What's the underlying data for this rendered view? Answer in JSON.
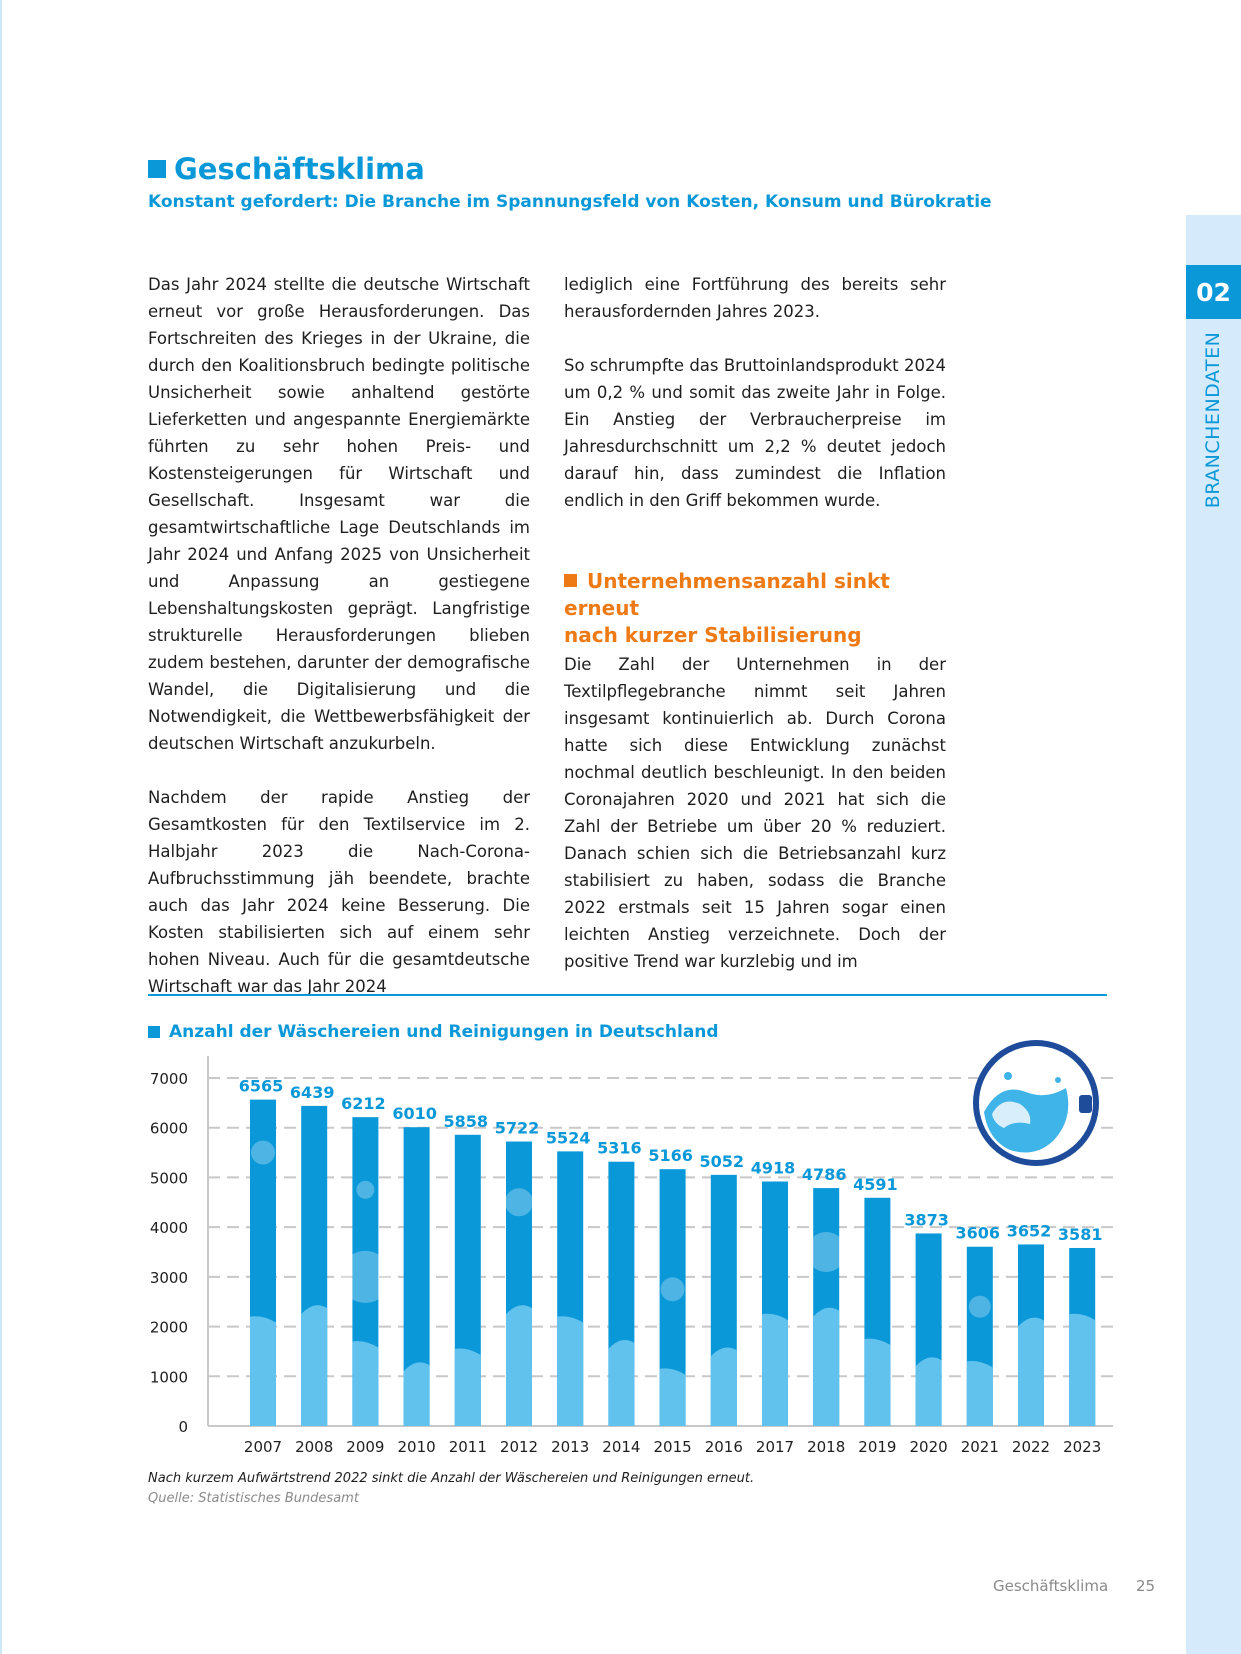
{
  "header": {
    "title": "Geschäftsklima",
    "subtitle": "Konstant gefordert: Die Branche im Spannungsfeld von Kosten, Konsum und Bürokratie"
  },
  "sidebar": {
    "chapter_number": "02",
    "chapter_label": "BRANCHENDATEN"
  },
  "body": {
    "left_paragraphs": [
      "Das Jahr 2024 stellte die deutsche Wirtschaft erneut vor große Herausforderungen. Das Fortschreiten des Krieges in der Ukraine, die durch den Koalitionsbruch bedingte politische Unsicherheit sowie anhaltend gestörte Lieferketten und angespannte Energiemärkte führten zu sehr hohen Preis- und Kostensteigerungen für Wirtschaft und Gesellschaft. Insgesamt war die gesamtwirtschaftliche Lage Deutschlands im Jahr 2024 und Anfang 2025 von Unsicherheit und Anpassung an gestiegene Lebenshaltungskosten geprägt. Langfristige strukturelle Herausforderungen blieben zudem bestehen, darunter der demografische Wandel, die Digitalisierung und die Notwendigkeit, die Wettbewerbsfähigkeit der deutschen Wirtschaft anzukurbeln.",
      "Nachdem der rapide Anstieg der Gesamtkosten für den Textilservice im 2. Halbjahr 2023 die Nach-Corona-Aufbruchsstimmung jäh beendete, brachte auch das Jahr 2024 keine Besserung. Die Kosten stabilisierten sich auf einem sehr hohen Niveau. Auch für die gesamtdeutsche Wirtschaft war das Jahr 2024"
    ],
    "right_paragraphs": [
      "lediglich eine Fortführung des bereits sehr herausfordernden Jahres 2023.",
      "So schrumpfte das Bruttoinlandsprodukt 2024 um 0,2 % und somit das zweite Jahr in Folge. Ein Anstieg der Verbraucherpreise im Jahresdurchschnitt um 2,2 % deutet jedoch darauf hin, dass zumindest die Inflation endlich in den Griff bekommen wurde."
    ],
    "subheading_line1": "Unternehmensanzahl sinkt erneut",
    "subheading_line2": "nach kurzer Stabilisierung",
    "right_paragraph2": "Die Zahl der Unternehmen in der Textilpflegebranche nimmt seit Jahren insgesamt kontinuierlich ab. Durch Corona hatte sich diese Entwicklung zunächst nochmal deutlich beschleunigt. In den beiden Coronajahren 2020 und 2021 hat sich die Zahl der Betriebe um über 20 % reduziert. Danach schien sich die Betriebsanzahl kurz stabilisiert zu haben, sodass die Branche 2022 erstmals seit 15 Jahren sogar einen leichten Anstieg verzeichnete. Doch der positive Trend war kurzlebig und im"
  },
  "chart_data": {
    "type": "bar",
    "title": "Anzahl der Wäschereien und Reinigungen in Deutschland",
    "categories": [
      "2007",
      "2008",
      "2009",
      "2010",
      "2011",
      "2012",
      "2013",
      "2014",
      "2015",
      "2016",
      "2017",
      "2018",
      "2019",
      "2020",
      "2021",
      "2022",
      "2023"
    ],
    "values": [
      6565,
      6439,
      6212,
      6010,
      5858,
      5722,
      5524,
      5316,
      5166,
      5052,
      4918,
      4786,
      4591,
      3873,
      3606,
      3652,
      3581
    ],
    "yticks": [
      0,
      1000,
      2000,
      3000,
      4000,
      5000,
      6000,
      7000
    ],
    "ylim": [
      0,
      7000
    ],
    "grid": true,
    "colors": {
      "bar": "#0a98d9",
      "wave": "#62c2ee",
      "label": "#0a98d9",
      "grid": "#c8c8c8"
    }
  },
  "chart_icon": "washing-machine-icon",
  "caption": "Nach kurzem Aufwärtstrend 2022 sinkt die Anzahl der Wäschereien und Reinigungen erneut.",
  "source": "Quelle: Statistisches Bundesamt",
  "footer": {
    "section": "Geschäftsklima",
    "page": "25"
  }
}
